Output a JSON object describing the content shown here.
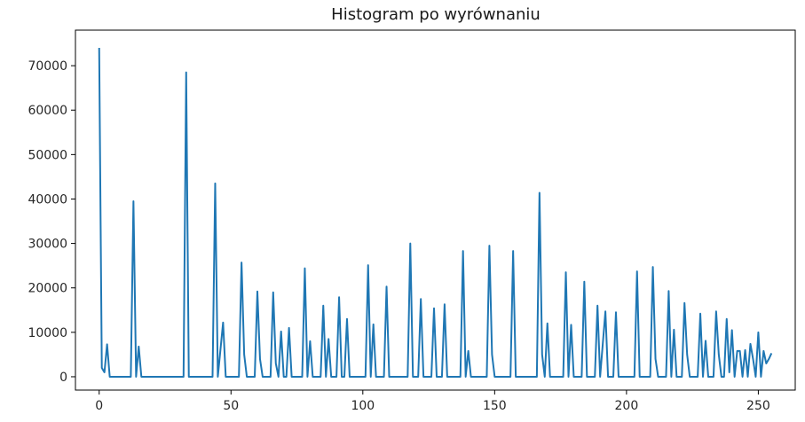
{
  "chart_data": {
    "type": "line",
    "title": "Histogram po wyrównaniu",
    "xlabel": "",
    "ylabel": "",
    "xlim": [
      -9,
      264
    ],
    "ylim": [
      -3000,
      78000
    ],
    "x_ticks": [
      0,
      50,
      100,
      150,
      200,
      250
    ],
    "y_ticks": [
      0,
      10000,
      20000,
      30000,
      40000,
      50000,
      60000,
      70000
    ],
    "grid": false,
    "line_color": "#1f77b4",
    "series": [
      {
        "points": [
          [
            0,
            74000
          ],
          [
            1,
            2000
          ],
          [
            2,
            1000
          ],
          [
            3,
            7300
          ],
          [
            4,
            0
          ],
          [
            12,
            0
          ],
          [
            13,
            39500
          ],
          [
            14,
            0
          ],
          [
            15,
            6800
          ],
          [
            16,
            0
          ],
          [
            32,
            0
          ],
          [
            33,
            68500
          ],
          [
            34,
            0
          ],
          [
            43,
            0
          ],
          [
            44,
            43500
          ],
          [
            45,
            0
          ],
          [
            47,
            12200
          ],
          [
            48,
            0
          ],
          [
            53,
            0
          ],
          [
            54,
            25700
          ],
          [
            55,
            5000
          ],
          [
            56,
            0
          ],
          [
            59,
            0
          ],
          [
            60,
            19200
          ],
          [
            61,
            4000
          ],
          [
            62,
            0
          ],
          [
            65,
            0
          ],
          [
            66,
            19000
          ],
          [
            67,
            3000
          ],
          [
            68,
            0
          ],
          [
            69,
            10200
          ],
          [
            70,
            0
          ],
          [
            71,
            0
          ],
          [
            72,
            11000
          ],
          [
            73,
            0
          ],
          [
            77,
            0
          ],
          [
            78,
            24400
          ],
          [
            79,
            0
          ],
          [
            80,
            8000
          ],
          [
            81,
            0
          ],
          [
            84,
            0
          ],
          [
            85,
            16000
          ],
          [
            86,
            0
          ],
          [
            87,
            8500
          ],
          [
            88,
            0
          ],
          [
            90,
            0
          ],
          [
            91,
            17900
          ],
          [
            92,
            0
          ],
          [
            93,
            0
          ],
          [
            94,
            13000
          ],
          [
            95,
            0
          ],
          [
            101,
            0
          ],
          [
            102,
            25100
          ],
          [
            103,
            0
          ],
          [
            104,
            11800
          ],
          [
            105,
            0
          ],
          [
            108,
            0
          ],
          [
            109,
            20300
          ],
          [
            110,
            0
          ],
          [
            117,
            0
          ],
          [
            118,
            30000
          ],
          [
            119,
            0
          ],
          [
            121,
            0
          ],
          [
            122,
            17500
          ],
          [
            123,
            0
          ],
          [
            126,
            0
          ],
          [
            127,
            15400
          ],
          [
            128,
            0
          ],
          [
            130,
            0
          ],
          [
            131,
            16300
          ],
          [
            132,
            0
          ],
          [
            137,
            0
          ],
          [
            138,
            28300
          ],
          [
            139,
            0
          ],
          [
            140,
            5800
          ],
          [
            141,
            0
          ],
          [
            147,
            0
          ],
          [
            148,
            29500
          ],
          [
            149,
            5000
          ],
          [
            150,
            0
          ],
          [
            156,
            0
          ],
          [
            157,
            28300
          ],
          [
            158,
            0
          ],
          [
            166,
            0
          ],
          [
            167,
            41400
          ],
          [
            168,
            5000
          ],
          [
            169,
            0
          ],
          [
            170,
            12000
          ],
          [
            171,
            0
          ],
          [
            176,
            0
          ],
          [
            177,
            23500
          ],
          [
            178,
            0
          ],
          [
            179,
            11700
          ],
          [
            180,
            0
          ],
          [
            183,
            0
          ],
          [
            184,
            21400
          ],
          [
            185,
            0
          ],
          [
            188,
            0
          ],
          [
            189,
            16000
          ],
          [
            190,
            0
          ],
          [
            192,
            14700
          ],
          [
            193,
            0
          ],
          [
            195,
            0
          ],
          [
            196,
            14500
          ],
          [
            197,
            0
          ],
          [
            203,
            0
          ],
          [
            204,
            23700
          ],
          [
            205,
            0
          ],
          [
            209,
            0
          ],
          [
            210,
            24700
          ],
          [
            211,
            4000
          ],
          [
            212,
            0
          ],
          [
            215,
            0
          ],
          [
            216,
            19300
          ],
          [
            217,
            0
          ],
          [
            218,
            10600
          ],
          [
            219,
            0
          ],
          [
            221,
            0
          ],
          [
            222,
            16600
          ],
          [
            223,
            5000
          ],
          [
            224,
            0
          ],
          [
            227,
            0
          ],
          [
            228,
            14200
          ],
          [
            229,
            0
          ],
          [
            230,
            8100
          ],
          [
            231,
            0
          ],
          [
            233,
            0
          ],
          [
            234,
            14700
          ],
          [
            235,
            5000
          ],
          [
            236,
            0
          ],
          [
            237,
            0
          ],
          [
            238,
            13000
          ],
          [
            239,
            1000
          ],
          [
            240,
            10500
          ],
          [
            241,
            0
          ],
          [
            242,
            5800
          ],
          [
            243,
            5800
          ],
          [
            244,
            0
          ],
          [
            245,
            6000
          ],
          [
            246,
            0
          ],
          [
            247,
            7400
          ],
          [
            248,
            4000
          ],
          [
            249,
            0
          ],
          [
            250,
            10000
          ],
          [
            251,
            0
          ],
          [
            252,
            5800
          ],
          [
            253,
            3000
          ],
          [
            254,
            4000
          ],
          [
            255,
            5300
          ]
        ]
      }
    ]
  }
}
